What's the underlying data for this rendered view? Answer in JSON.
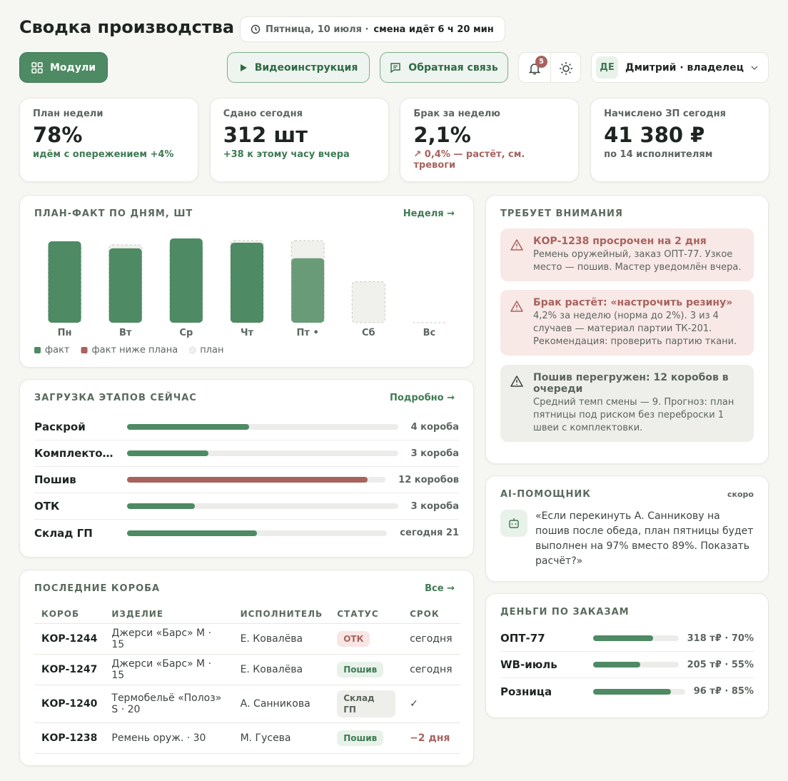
{
  "header": {
    "title": "Сводка производства",
    "date": "Пятница, 10 июля ·",
    "shift": "смена идёт 6 ч 20 мин"
  },
  "toolbar": {
    "modules": "Модули",
    "video": "Видеоинструкция",
    "feedback": "Обратная связь",
    "notifications": "5",
    "user_initials": "ДЕ",
    "user": "Дмитрий · владелец"
  },
  "kpis": [
    {
      "label": "План недели",
      "value": "78%",
      "note": "идём с опережением +4%",
      "tone": "good"
    },
    {
      "label": "Сдано сегодня",
      "value": "312 шт",
      "note": "+38 к этому часу вчера",
      "tone": "good"
    },
    {
      "label": "Брак за неделю",
      "value": "2,1%",
      "note": "↗ 0,4% — растёт, см. тревоги",
      "tone": "bad"
    },
    {
      "label": "Начислено ЗП сегодня",
      "value": "41 380 ₽",
      "note": "по 14 исполнителям",
      "tone": "neutral"
    }
  ],
  "chart_data": {
    "type": "bar",
    "title": "ПЛАН-ФАКТ ПО ДНЯМ, ШТ",
    "link": "Неделя →",
    "categories": [
      "Пн",
      "Вт",
      "Ср",
      "Чт",
      "Пт •",
      "Сб",
      "Вс"
    ],
    "series": [
      {
        "name": "факт",
        "color": "#4e8a63",
        "values": [
          115,
          105,
          119,
          113,
          null,
          null,
          null
        ]
      },
      {
        "name": "факт ниже плана",
        "color": "#a8635e",
        "bar_color": "#6a9b79",
        "values": [
          null,
          null,
          null,
          null,
          91,
          null,
          null
        ]
      },
      {
        "name": "план",
        "color": "#f0f0ec",
        "values": [
          110,
          110,
          110,
          116,
          116,
          58,
          0
        ]
      }
    ]
  },
  "stages": {
    "title": "ЗАГРУЗКА ЭТАПОВ СЕЙЧАС",
    "link": "Подробно →",
    "rows": [
      {
        "name": "Раскрой",
        "load": 45,
        "label": "4 короба",
        "color": "#4e8a63"
      },
      {
        "name": "Комплекто…",
        "load": 30,
        "label": "3 короба",
        "color": "#4e8a63"
      },
      {
        "name": "Пошив",
        "load": 93,
        "label": "12 коробов",
        "color": "#a8635e"
      },
      {
        "name": "ОТК",
        "load": 25,
        "label": "3 короба",
        "color": "#4e8a63"
      },
      {
        "name": "Склад ГП",
        "load": 50,
        "label": "сегодня 21",
        "color": "#4e8a63"
      }
    ]
  },
  "boxes": {
    "title": "ПОСЛЕДНИЕ КОРОБА",
    "link": "Все →",
    "columns": [
      "КОРОБ",
      "ИЗДЕЛИЕ",
      "ИСПОЛНИТЕЛЬ",
      "СТАТУС",
      "СРОК"
    ],
    "rows": [
      {
        "id": "КОР-1244",
        "item": "Джерси «Барс» M · 15",
        "worker": "Е. Ковалёва",
        "status": "ОТК",
        "status_tone": "bad",
        "due": "сегодня",
        "due_tone": "neutral"
      },
      {
        "id": "КОР-1247",
        "item": "Джерси «Барс» M · 15",
        "worker": "Е. Ковалёва",
        "status": "Пошив",
        "status_tone": "good",
        "due": "сегодня",
        "due_tone": "neutral"
      },
      {
        "id": "КОР-1240",
        "item": "Термобельё «Полоз» S · 20",
        "worker": "А. Санникова",
        "status": "Склад ГП",
        "status_tone": "neutral",
        "due": "✓",
        "due_tone": "neutral"
      },
      {
        "id": "КОР-1238",
        "item": "Ремень оруж. · 30",
        "worker": "М. Гусева",
        "status": "Пошив",
        "status_tone": "good",
        "due": "−2 дня",
        "due_tone": "bad"
      }
    ]
  },
  "alerts": {
    "title": "ТРЕБУЕТ ВНИМАНИЯ",
    "items": [
      {
        "title": "КОР-1238 просрочен на 2 дня",
        "text": "Ремень оружейный, заказ ОПТ-77. Узкое место — пошив. Мастер уведомлён вчера.",
        "tone": "bad"
      },
      {
        "title": "Брак растёт: «настрочить резину»",
        "text": "4,2% за неделю (норма до 2%). 3 из 4 случаев — материал партии ТК-201. Рекомендация: проверить партию ткани.",
        "tone": "bad"
      },
      {
        "title": "Пошив перегружен: 12 коробов в очереди",
        "text": "Средний темп смены — 9. Прогноз: план пятницы под риском без переброски 1 швеи с комплектовки.",
        "tone": "neutral"
      }
    ]
  },
  "ai": {
    "title": "AI-ПОМОЩНИК",
    "badge": "скоро",
    "text": "«Если перекинуть А. Санникову на пошив после обеда, план пятницы будет выполнен на 97% вместо 89%. Показать расчёт?»"
  },
  "money": {
    "title": "ДЕНЬГИ ПО ЗАКАЗАМ",
    "rows": [
      {
        "name": "ОПТ-77",
        "value": 70,
        "label": "318 т₽ · 70%"
      },
      {
        "name": "WB-июль",
        "value": 55,
        "label": "205 т₽ · 55%"
      },
      {
        "name": "Розница",
        "value": 85,
        "label": "96 т₽ · 85%"
      }
    ]
  }
}
